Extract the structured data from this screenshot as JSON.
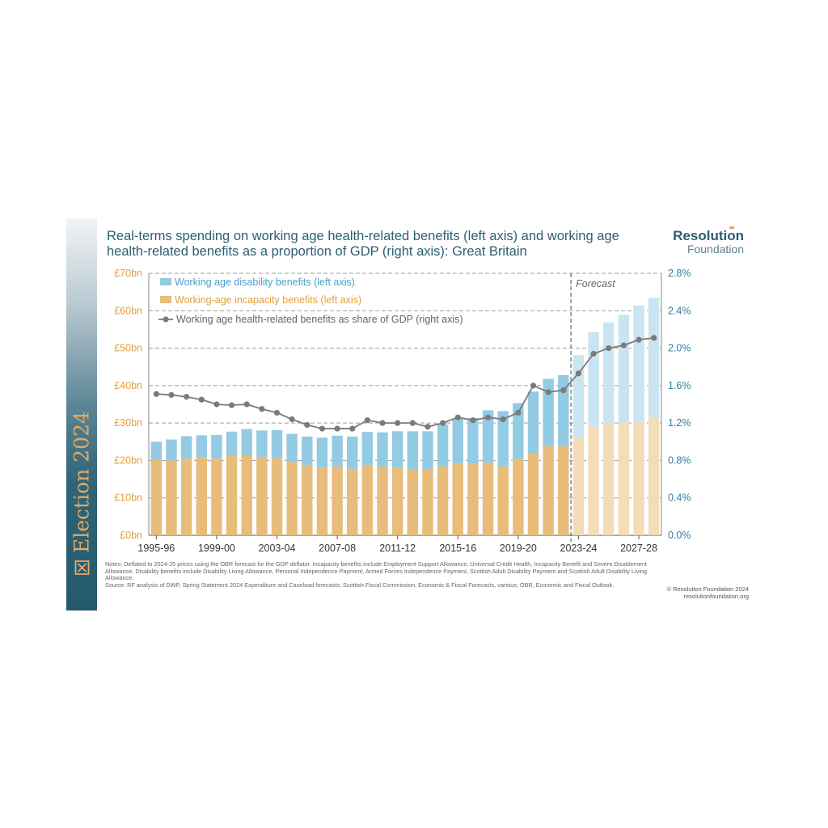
{
  "sidebar": {
    "label": "Election 2024"
  },
  "header": {
    "title": "Real-terms spending on working age health-related benefits (left axis) and working age health-related benefits as a proportion of GDP (right axis): Great Britain"
  },
  "logo": {
    "name": "Resolution",
    "sub": "Foundation"
  },
  "colors": {
    "disability": "#92cbe3",
    "disability_forecast": "#c9e5f2",
    "incapacity": "#e8bc7a",
    "incapacity_forecast": "#f4dcb6",
    "line": "#7a7a7a",
    "left_axis": "#e1a13f",
    "right_axis": "#2f7fa5",
    "grid": "#9b9b9b"
  },
  "chart_data": {
    "type": "bar",
    "stacked": true,
    "title": "Real-terms spending on working age health-related benefits (left axis) and working age health-related benefits as a proportion of GDP (right axis): Great Britain",
    "categories": [
      "1995-96",
      "1996-97",
      "1997-98",
      "1998-99",
      "1999-00",
      "2000-01",
      "2001-02",
      "2002-03",
      "2003-04",
      "2004-05",
      "2005-06",
      "2006-07",
      "2007-08",
      "2008-09",
      "2009-10",
      "2010-11",
      "2011-12",
      "2012-13",
      "2013-14",
      "2014-15",
      "2015-16",
      "2016-17",
      "2017-18",
      "2018-19",
      "2019-20",
      "2020-21",
      "2021-22",
      "2022-23",
      "2023-24",
      "2024-25",
      "2025-26",
      "2026-27",
      "2027-28",
      "2028-29"
    ],
    "x_tick_labels": [
      "1995-96",
      "1999-00",
      "2003-04",
      "2007-08",
      "2011-12",
      "2015-16",
      "2019-20",
      "2023-24",
      "2027-28"
    ],
    "forecast_start": "2023-24",
    "forecast_label": "Forecast",
    "series": [
      {
        "name": "Working-age incapacity benefits (left axis)",
        "axis": "left",
        "values": [
          20.2,
          20.0,
          20.5,
          20.8,
          20.5,
          21.2,
          21.5,
          21.0,
          20.6,
          19.6,
          18.8,
          18.1,
          18.4,
          17.8,
          18.6,
          18.4,
          18.1,
          17.6,
          17.6,
          18.4,
          19.3,
          19.2,
          19.4,
          18.4,
          20.4,
          21.8,
          23.8,
          23.8,
          25.9,
          29.0,
          29.7,
          30.1,
          30.5,
          31.3
        ]
      },
      {
        "name": "Working age disability benefits (left axis)",
        "axis": "left",
        "values": [
          4.8,
          5.6,
          6.0,
          5.9,
          6.3,
          6.5,
          6.9,
          7.0,
          7.5,
          7.5,
          7.6,
          8.0,
          8.2,
          8.6,
          9.0,
          9.1,
          9.7,
          10.2,
          10.2,
          11.2,
          11.9,
          12.1,
          14.0,
          14.8,
          14.9,
          16.6,
          18.0,
          19.0,
          22.2,
          25.3,
          27.2,
          28.8,
          30.9,
          32.1
        ]
      },
      {
        "name": "Working age health-related benefits as share of GDP (right axis)",
        "axis": "right",
        "type": "line",
        "values": [
          1.51,
          1.5,
          1.48,
          1.45,
          1.4,
          1.39,
          1.4,
          1.35,
          1.31,
          1.24,
          1.18,
          1.14,
          1.14,
          1.14,
          1.23,
          1.2,
          1.2,
          1.2,
          1.16,
          1.2,
          1.26,
          1.23,
          1.26,
          1.24,
          1.31,
          1.6,
          1.53,
          1.55,
          1.73,
          1.94,
          2.0,
          2.03,
          2.09,
          2.11
        ]
      }
    ],
    "left_axis": {
      "min": 0,
      "max": 70,
      "step": 10,
      "tick_labels": [
        "£0bn",
        "£10bn",
        "£20bn",
        "£30bn",
        "£40bn",
        "£50bn",
        "£60bn",
        "£70bn"
      ]
    },
    "right_axis": {
      "min": 0,
      "max": 2.8,
      "step": 0.4,
      "tick_labels": [
        "0.0%",
        "0.4%",
        "0.8%",
        "1.2%",
        "1.6%",
        "2.0%",
        "2.4%",
        "2.8%"
      ]
    },
    "legend": [
      "Working age disability benefits (left axis)",
      "Working-age incapacity benefits (left axis)",
      "Working age health-related benefits as share of GDP (right axis)"
    ],
    "legend_position": "top-left",
    "grid": true
  },
  "notes": {
    "line1": "Notes: Deflated to 2024-25 prices using the OBR forecast for the GDP deflator. Incapacity benefits include Employment Support Allowance, Universal Credit Health, Incapacity Benefit and Severe Disablement Allowance. Disability benefits include Disability Living Allowance, Personal Independence Payment, Armed Forces Independence Payment, Scottish Adult Disability Payment and Scottish Adult Disability Living Allowance.",
    "line2": "Source: RF analysis of DWP, Spring Statement 2024 Expenditure and Caseload forecasts; Scottish Fiscal Commission, Economic & Fiscal Forecasts, various; OBR, Economic and Fiscal Outlook."
  },
  "credit": {
    "copyright": "© Resolution Foundation 2024",
    "website": "resolutionfoundation.org"
  }
}
